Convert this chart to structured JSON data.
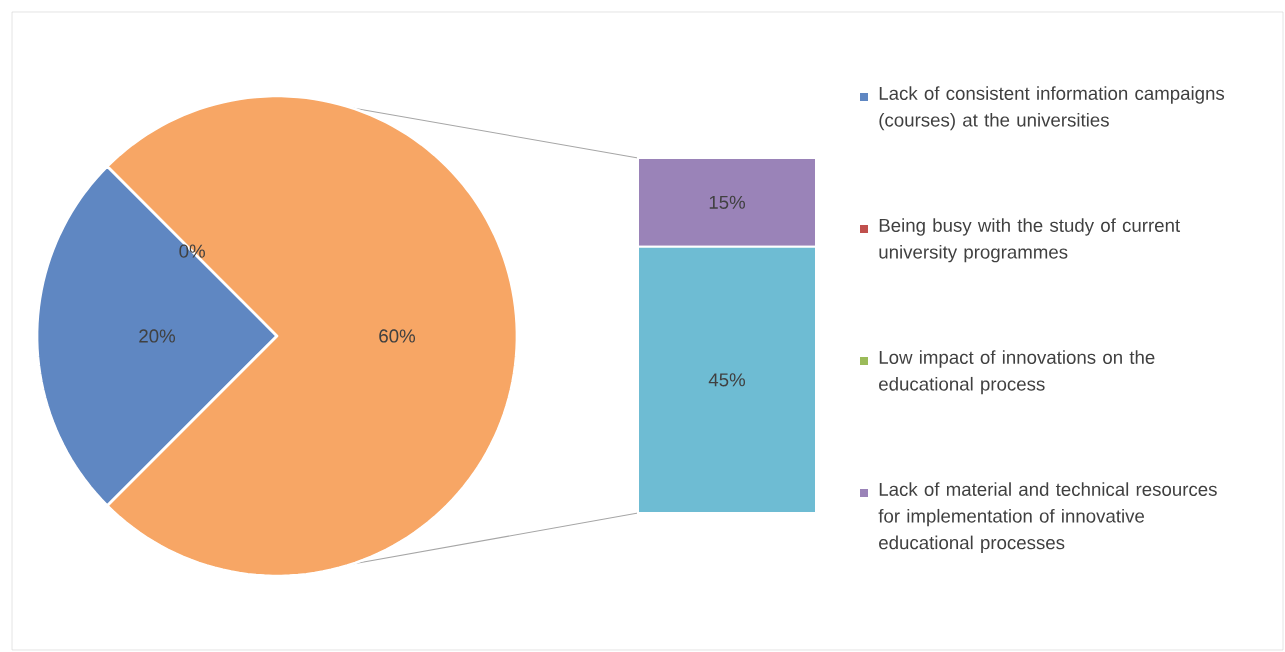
{
  "chart_data": [
    {
      "type": "pie",
      "categories": [
        "Lack of consistent information campaigns (courses) at the universities",
        "Being busy with the study of current university programmes",
        "Low impact of innovations on the educational process",
        null
      ],
      "values": [
        20,
        0,
        0,
        60
      ],
      "colors": [
        "#5f87c2",
        "#c0504d",
        "#9bbb59",
        "#f7a665"
      ],
      "value_labels": [
        "20%",
        "0%",
        null,
        "60%"
      ],
      "legend": "right"
    },
    {
      "type": "bar",
      "stacked": true,
      "categories": [
        null
      ],
      "legend": "right",
      "series": [
        {
          "color": "#6ebcd3",
          "values": [
            45
          ],
          "value_labels": [
            "45%"
          ]
        },
        {
          "name": "Lack of material and technical resources for implementation of innovative educational processes",
          "color": "#9a83b8",
          "values": [
            15
          ],
          "value_labels": [
            "15%"
          ]
        }
      ]
    }
  ]
}
